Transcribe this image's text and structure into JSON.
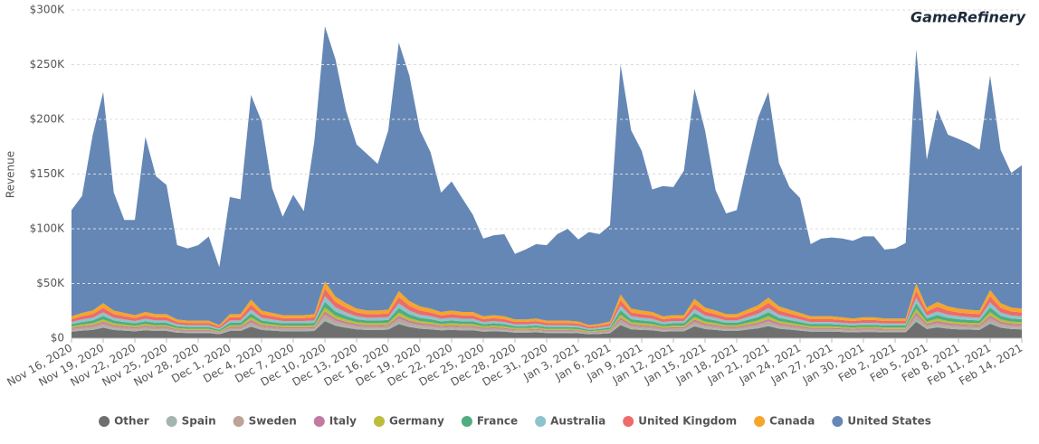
{
  "chart_data": {
    "type": "stacked_area",
    "logo": "GameRefinery",
    "y_label": "Revenue",
    "ylim": [
      0,
      300
    ],
    "yticks": [
      {
        "value": 0,
        "label": "$0"
      },
      {
        "value": 50,
        "label": "$50K"
      },
      {
        "value": 100,
        "label": "$100K"
      },
      {
        "value": 150,
        "label": "$150K"
      },
      {
        "value": 200,
        "label": "$200K"
      },
      {
        "value": 250,
        "label": "$250K"
      },
      {
        "value": 300,
        "label": "$300K"
      }
    ],
    "grid": true,
    "legend": "bottom",
    "categories": [
      "Nov 16, 2020",
      null,
      null,
      "Nov 19, 2020",
      null,
      null,
      "Nov 22, 2020",
      null,
      null,
      "Nov 25, 2020",
      null,
      null,
      "Nov 28, 2020",
      null,
      null,
      "Dec 1, 2020",
      null,
      null,
      "Dec 4, 2020",
      null,
      null,
      "Dec 7, 2020",
      null,
      null,
      "Dec 10, 2020",
      null,
      null,
      "Dec 13, 2020",
      null,
      null,
      "Dec 16, 2020",
      null,
      null,
      "Dec 19, 2020",
      null,
      null,
      "Dec 22, 2020",
      null,
      null,
      "Dec 25, 2020",
      null,
      null,
      "Dec 28, 2020",
      null,
      null,
      "Dec 31, 2020",
      null,
      null,
      "Jan 3, 2021",
      null,
      null,
      "Jan 6, 2021",
      null,
      null,
      "Jan 9, 2021",
      null,
      null,
      "Jan 12, 2021",
      null,
      null,
      "Jan 15, 2021",
      null,
      null,
      "Jan 18, 2021",
      null,
      null,
      "Jan 21, 2021",
      null,
      null,
      "Jan 24, 2021",
      null,
      null,
      "Jan 27, 2021",
      null,
      null,
      "Jan 30, 2021",
      null,
      null,
      "Feb 2, 2021",
      null,
      null,
      "Feb 5, 2021",
      null,
      null,
      "Feb 8, 2021",
      null,
      null,
      "Feb 11, 2021",
      null,
      null,
      "Feb 14, 2021"
    ],
    "series": [
      {
        "name": "Other",
        "color": "#6f6f6f",
        "values": [
          6,
          6.9,
          7.5,
          9.6,
          7.5,
          6.9,
          6.3,
          7.2,
          6.6,
          6.6,
          5.1,
          4.8,
          4.8,
          4.8,
          3.6,
          6.6,
          6.6,
          10.5,
          7.5,
          6.9,
          6.3,
          6.3,
          6.3,
          6.6,
          15.6,
          11.4,
          9.6,
          8.1,
          7.5,
          7.5,
          7.8,
          12.9,
          10.2,
          8.7,
          8.1,
          7.2,
          7.5,
          7.2,
          7.2,
          6,
          6.3,
          6,
          5.1,
          5.1,
          5.4,
          4.8,
          4.8,
          4.8,
          4.5,
          3.6,
          3.9,
          4.5,
          12,
          8.1,
          7.5,
          7.2,
          6,
          6.3,
          6.3,
          10.8,
          8.4,
          7.5,
          6.6,
          6.6,
          7.8,
          9,
          11.1,
          8.7,
          7.8,
          6.9,
          6,
          6,
          6,
          5.7,
          5.4,
          5.7,
          5.7,
          5.4,
          5.4,
          5.4,
          15,
          8.4,
          9.9,
          8.7,
          8.1,
          7.8,
          7.5,
          13.2,
          9.6,
          8.4,
          8.1
        ]
      },
      {
        "name": "Spain",
        "color": "#a3b5ad",
        "values": [
          1,
          1.2,
          1.3,
          1.6,
          1.3,
          1.2,
          1.1,
          1.2,
          1.1,
          1.1,
          0.9,
          0.8,
          0.8,
          0.8,
          0.6,
          1.1,
          1.1,
          1.8,
          1.3,
          1.2,
          1.1,
          1.1,
          1.1,
          1.1,
          2.6,
          1.9,
          1.6,
          1.4,
          1.3,
          1.3,
          1.3,
          2.2,
          1.7,
          1.5,
          1.4,
          1.2,
          1.3,
          1.2,
          1.2,
          1,
          1.1,
          1,
          0.9,
          0.9,
          0.9,
          0.8,
          0.8,
          0.8,
          0.8,
          0.6,
          0.7,
          0.8,
          2,
          1.4,
          1.3,
          1.2,
          1,
          1.1,
          1.1,
          1.8,
          1.4,
          1.3,
          1.1,
          1.1,
          1.3,
          1.5,
          1.9,
          1.5,
          1.3,
          1.2,
          1,
          1,
          1,
          1,
          0.9,
          1,
          1,
          0.9,
          0.9,
          0.9,
          2.5,
          1.4,
          1.7,
          1.5,
          1.4,
          1.3,
          1.3,
          2.2,
          1.6,
          1.4,
          1.4
        ]
      },
      {
        "name": "Sweden",
        "color": "#bfa398",
        "values": [
          1.4,
          1.6,
          1.8,
          2.2,
          1.8,
          1.6,
          1.5,
          1.7,
          1.5,
          1.5,
          1.2,
          1.1,
          1.1,
          1.1,
          0.8,
          1.5,
          1.5,
          2.5,
          1.8,
          1.6,
          1.5,
          1.5,
          1.5,
          1.5,
          3.6,
          2.7,
          2.2,
          1.9,
          1.8,
          1.8,
          1.8,
          3,
          2.4,
          2,
          1.9,
          1.7,
          1.8,
          1.7,
          1.7,
          1.4,
          1.5,
          1.4,
          1.2,
          1.2,
          1.3,
          1.1,
          1.1,
          1.1,
          1.1,
          0.8,
          0.9,
          1.1,
          2.8,
          1.9,
          1.8,
          1.7,
          1.4,
          1.5,
          1.5,
          2.5,
          2,
          1.8,
          1.5,
          1.5,
          1.8,
          2.1,
          2.6,
          2,
          1.8,
          1.6,
          1.4,
          1.4,
          1.4,
          1.3,
          1.3,
          1.3,
          1.3,
          1.3,
          1.3,
          1.3,
          3.5,
          2,
          2.3,
          2,
          1.9,
          1.8,
          1.8,
          3.1,
          2.2,
          2,
          1.9
        ]
      },
      {
        "name": "Italy",
        "color": "#c47aa0",
        "values": [
          1,
          1.2,
          1.3,
          1.6,
          1.3,
          1.2,
          1.1,
          1.2,
          1.1,
          1.1,
          0.9,
          0.8,
          0.8,
          0.8,
          0.6,
          1.1,
          1.1,
          1.8,
          1.3,
          1.2,
          1.1,
          1.1,
          1.1,
          1.1,
          2.6,
          1.9,
          1.6,
          1.4,
          1.3,
          1.3,
          1.3,
          2.2,
          1.7,
          1.5,
          1.4,
          1.2,
          1.3,
          1.2,
          1.2,
          1,
          1.1,
          1,
          0.9,
          0.9,
          0.9,
          0.8,
          0.8,
          0.8,
          0.8,
          0.6,
          0.7,
          0.8,
          2,
          1.4,
          1.3,
          1.2,
          1,
          1.1,
          1.1,
          1.8,
          1.4,
          1.3,
          1.1,
          1.1,
          1.3,
          1.5,
          1.9,
          1.5,
          1.3,
          1.2,
          1,
          1,
          1,
          1,
          0.9,
          1,
          1,
          0.9,
          0.9,
          0.9,
          2.5,
          1.4,
          1.7,
          1.5,
          1.4,
          1.3,
          1.3,
          2.2,
          1.6,
          1.4,
          1.4
        ]
      },
      {
        "name": "Germany",
        "color": "#bcbd3a",
        "values": [
          1.4,
          1.6,
          1.8,
          2.2,
          1.8,
          1.6,
          1.5,
          1.7,
          1.5,
          1.5,
          1.2,
          1.1,
          1.1,
          1.1,
          0.8,
          1.5,
          1.5,
          2.5,
          1.8,
          1.6,
          1.5,
          1.5,
          1.5,
          1.5,
          3.6,
          2.7,
          2.2,
          1.9,
          1.8,
          1.8,
          1.8,
          3,
          2.4,
          2,
          1.9,
          1.7,
          1.8,
          1.7,
          1.7,
          1.4,
          1.5,
          1.4,
          1.2,
          1.2,
          1.3,
          1.1,
          1.1,
          1.1,
          1.1,
          0.8,
          0.9,
          1.1,
          2.8,
          1.9,
          1.8,
          1.7,
          1.4,
          1.5,
          1.5,
          2.5,
          2,
          1.8,
          1.5,
          1.5,
          1.8,
          2.1,
          2.6,
          2,
          1.8,
          1.6,
          1.4,
          1.4,
          1.4,
          1.3,
          1.3,
          1.3,
          1.3,
          1.3,
          1.3,
          1.3,
          3.5,
          2,
          2.3,
          2,
          1.9,
          1.8,
          1.8,
          3.1,
          2.2,
          2,
          1.9
        ]
      },
      {
        "name": "France",
        "color": "#4fad7f",
        "values": [
          2,
          2.3,
          2.5,
          3.2,
          2.5,
          2.3,
          2.1,
          2.4,
          2.2,
          2.2,
          1.7,
          1.6,
          1.6,
          1.6,
          1.2,
          2.2,
          2.2,
          3.5,
          2.5,
          2.3,
          2.1,
          2.1,
          2.1,
          2.2,
          5.2,
          3.8,
          3.2,
          2.7,
          2.5,
          2.5,
          2.6,
          4.3,
          3.4,
          2.9,
          2.7,
          2.4,
          2.5,
          2.4,
          2.4,
          2,
          2.1,
          2,
          1.7,
          1.7,
          1.8,
          1.6,
          1.6,
          1.6,
          1.5,
          1.2,
          1.3,
          1.5,
          4,
          2.7,
          2.5,
          2.4,
          2,
          2.1,
          2.1,
          3.6,
          2.8,
          2.5,
          2.2,
          2.2,
          2.6,
          3,
          3.7,
          2.9,
          2.6,
          2.3,
          2,
          2,
          2,
          1.9,
          1.8,
          1.9,
          1.9,
          1.8,
          1.8,
          1.8,
          5,
          2.8,
          3.3,
          2.9,
          2.7,
          2.6,
          2.5,
          4.4,
          3.2,
          2.8,
          2.7
        ]
      },
      {
        "name": "Australia",
        "color": "#8dc3cd",
        "values": [
          2,
          2.3,
          2.5,
          3.2,
          2.5,
          2.3,
          2.1,
          2.4,
          2.2,
          2.2,
          1.7,
          1.6,
          1.6,
          1.6,
          1.2,
          2.2,
          2.2,
          3.5,
          2.5,
          2.3,
          2.1,
          2.1,
          2.1,
          2.2,
          5.2,
          3.8,
          3.2,
          2.7,
          2.5,
          2.5,
          2.6,
          4.3,
          3.4,
          2.9,
          2.7,
          2.4,
          2.5,
          2.4,
          2.4,
          2,
          2.1,
          2,
          1.7,
          1.7,
          1.8,
          1.6,
          1.6,
          1.6,
          1.5,
          1.2,
          1.3,
          1.5,
          4,
          2.7,
          2.5,
          2.4,
          2,
          2.1,
          2.1,
          3.6,
          2.8,
          2.5,
          2.2,
          2.2,
          2.6,
          3,
          3.7,
          2.9,
          2.6,
          2.3,
          2,
          2,
          2,
          1.9,
          1.8,
          1.9,
          1.9,
          1.8,
          1.8,
          1.8,
          5,
          2.8,
          3.3,
          2.9,
          2.7,
          2.6,
          2.5,
          4.4,
          3.2,
          2.8,
          2.7
        ]
      },
      {
        "name": "United Kingdom",
        "color": "#ee6b6b",
        "values": [
          2.6,
          3,
          3.3,
          4.2,
          3.3,
          3,
          2.7,
          3.1,
          2.9,
          2.9,
          2.2,
          2.1,
          2.1,
          2.1,
          1.6,
          2.9,
          2.9,
          4.6,
          3.3,
          3,
          2.7,
          2.7,
          2.7,
          2.9,
          6.8,
          4.9,
          4.2,
          3.5,
          3.3,
          3.3,
          3.4,
          5.6,
          4.4,
          3.8,
          3.5,
          3.1,
          3.3,
          3.1,
          3.1,
          2.6,
          2.7,
          2.6,
          2.2,
          2.2,
          2.3,
          2.1,
          2.1,
          2.1,
          2,
          1.6,
          1.7,
          2,
          5.2,
          3.5,
          3.3,
          3.1,
          2.6,
          2.7,
          2.7,
          4.7,
          3.6,
          3.3,
          2.9,
          2.9,
          3.4,
          3.9,
          4.8,
          3.8,
          3.4,
          3,
          2.6,
          2.6,
          2.6,
          2.5,
          2.3,
          2.5,
          2.5,
          2.3,
          2.3,
          2.3,
          6.5,
          3.6,
          4.3,
          3.8,
          3.5,
          3.4,
          3.3,
          5.7,
          4.2,
          3.6,
          3.5
        ]
      },
      {
        "name": "Canada",
        "color": "#f5a52b",
        "values": [
          2.6,
          3,
          3.3,
          4.2,
          3.3,
          3,
          2.7,
          3.1,
          2.9,
          2.9,
          2.2,
          2.1,
          2.1,
          2.1,
          1.6,
          2.9,
          2.9,
          4.6,
          3.3,
          3,
          2.7,
          2.7,
          2.7,
          2.9,
          6.8,
          4.9,
          4.2,
          3.5,
          3.3,
          3.3,
          3.4,
          5.6,
          4.4,
          3.8,
          3.5,
          3.1,
          3.3,
          3.1,
          3.1,
          2.6,
          2.7,
          2.6,
          2.2,
          2.2,
          2.3,
          2.1,
          2.1,
          2.1,
          2,
          1.6,
          1.7,
          2,
          5.2,
          3.5,
          3.3,
          3.1,
          2.6,
          2.7,
          2.7,
          4.7,
          3.6,
          3.3,
          2.9,
          2.9,
          3.4,
          3.9,
          4.8,
          3.8,
          3.4,
          3,
          2.6,
          2.6,
          2.6,
          2.5,
          2.3,
          2.5,
          2.5,
          2.3,
          2.3,
          2.3,
          6.5,
          3.6,
          4.3,
          3.8,
          3.5,
          3.4,
          3.3,
          5.7,
          4.2,
          3.6,
          3.5
        ]
      },
      {
        "name": "United States",
        "color": "#6587b5",
        "values": [
          97,
          107,
          160,
          193,
          108,
          85,
          87,
          160,
          126,
          118,
          68,
          66,
          69,
          77,
          53,
          107,
          105,
          187,
          173,
          114,
          90,
          110,
          95,
          158,
          233,
          217,
          176,
          150,
          143,
          134,
          164,
          227,
          206,
          161,
          143,
          109,
          118,
          104,
          89,
          71,
          73,
          75,
          60,
          64,
          68,
          69,
          79,
          84,
          75,
          85,
          82,
          88,
          210,
          163,
          146,
          112,
          119,
          117,
          132,
          192,
          162,
          110,
          92,
          95,
          134,
          171,
          188,
          131,
          112,
          105,
          66,
          71,
          72,
          72,
          71,
          74,
          74,
          63,
          64,
          69,
          214,
          135,
          176,
          157,
          155,
          152,
          147,
          196,
          140,
          123,
          131
        ]
      }
    ]
  }
}
